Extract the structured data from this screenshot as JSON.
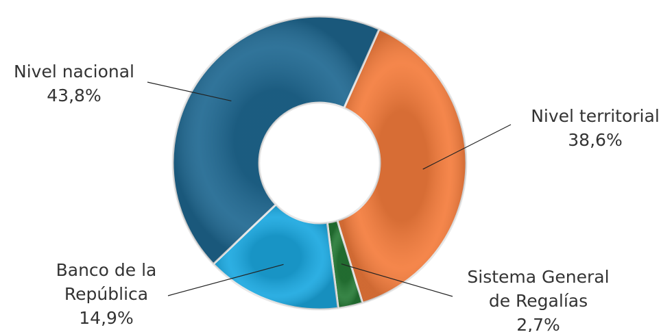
{
  "chart_data": {
    "type": "donut",
    "categories": [
      "Nivel territorial",
      "Sistema General de Regalías",
      "Banco de la República",
      "Nivel nacional"
    ],
    "values": [
      38.6,
      2.7,
      14.9,
      43.8
    ],
    "value_labels": [
      "38,6%",
      "2,7%",
      "14,9%",
      "43,8%"
    ],
    "colors": [
      "#f47c3c",
      "#267a36",
      "#1ba8e0",
      "#1f6891"
    ]
  }
}
